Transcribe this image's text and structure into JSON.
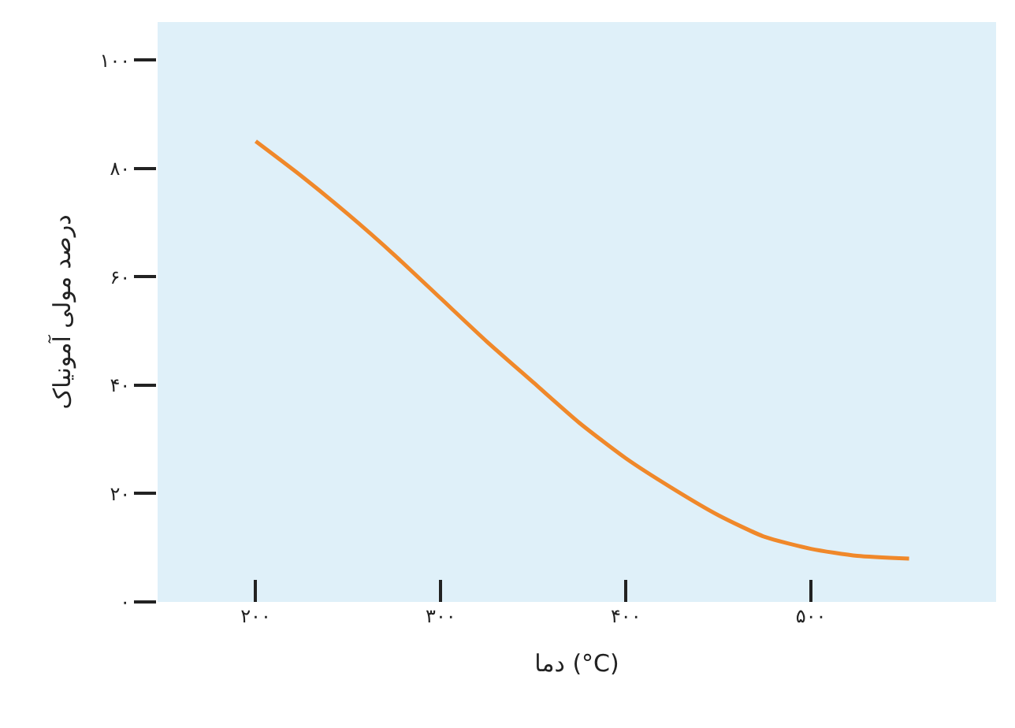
{
  "chart_data": {
    "type": "line",
    "xlabel": "دما (°C)",
    "ylabel": "درصد مولی آمونیاک",
    "x": [
      200,
      225,
      250,
      275,
      300,
      325,
      350,
      375,
      400,
      425,
      450,
      475,
      500,
      525,
      553
    ],
    "series": [
      {
        "color": "#f0882a",
        "values": [
          85,
          78.5,
          71.5,
          64,
          56,
          48,
          40.5,
          33,
          26.5,
          21,
          16,
          12,
          9.8,
          8.5,
          8
        ]
      }
    ],
    "xlim": [
      147,
      600
    ],
    "ylim": [
      0,
      107
    ],
    "xticks": [
      {
        "value": 200,
        "label": "۲۰۰"
      },
      {
        "value": 300,
        "label": "۳۰۰"
      },
      {
        "value": 400,
        "label": "۴۰۰"
      },
      {
        "value": 500,
        "label": "۵۰۰"
      }
    ],
    "yticks": [
      {
        "value": 0,
        "label": "۰"
      },
      {
        "value": 20,
        "label": "۲۰"
      },
      {
        "value": 40,
        "label": "۴۰"
      },
      {
        "value": 60,
        "label": "۶۰"
      },
      {
        "value": 80,
        "label": "۸۰"
      },
      {
        "value": 100,
        "label": "۱۰۰"
      }
    ],
    "line_style": "solid"
  }
}
